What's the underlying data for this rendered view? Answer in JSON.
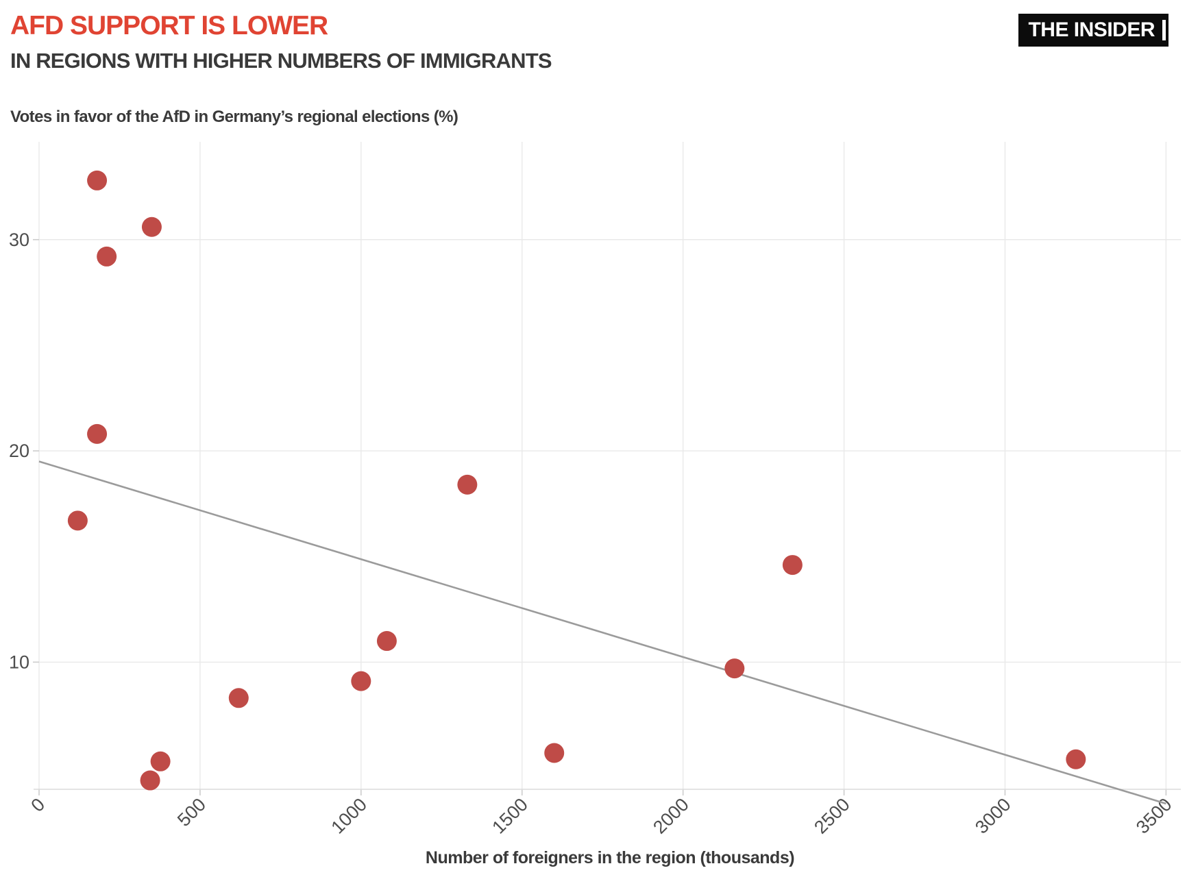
{
  "header": {
    "title_line1": "AFD SUPPORT IS LOWER",
    "title_line2": "IN REGIONS WITH HIGHER NUMBERS OF IMMIGRANTS",
    "logo_text": "THE INSIDER"
  },
  "chart_data": {
    "type": "scatter",
    "title": "Votes in favor of the AfD in Germany’s regional elections (%)",
    "xlabel": "Number of foreigners in the region (thousands)",
    "ylabel": "Votes in favor of the AfD in Germany’s regional elections (%)",
    "x_ticks": [
      0,
      500,
      1000,
      1500,
      2000,
      2500,
      3000,
      3500
    ],
    "y_ticks": [
      10,
      20,
      30
    ],
    "xlim": [
      0,
      3546
    ],
    "ylim": [
      3.98,
      34.63
    ],
    "grid": true,
    "legend": "none",
    "points": [
      {
        "x": 180,
        "y": 32.8
      },
      {
        "x": 350,
        "y": 30.6
      },
      {
        "x": 210,
        "y": 29.2
      },
      {
        "x": 180,
        "y": 20.8
      },
      {
        "x": 120,
        "y": 16.7
      },
      {
        "x": 1330,
        "y": 18.4
      },
      {
        "x": 2340,
        "y": 14.6
      },
      {
        "x": 1080,
        "y": 11.0
      },
      {
        "x": 1000,
        "y": 9.1
      },
      {
        "x": 2160,
        "y": 9.7
      },
      {
        "x": 620,
        "y": 8.3
      },
      {
        "x": 1600,
        "y": 5.7
      },
      {
        "x": 3220,
        "y": 5.4
      },
      {
        "x": 377,
        "y": 5.3
      },
      {
        "x": 345,
        "y": 4.4
      }
    ],
    "trend_line": {
      "x1": 0,
      "y1": 19.5,
      "x2": 3500,
      "y2": 3.3
    },
    "point_color": "#bf4b47",
    "trend_color": "#9b9b9b",
    "grid_color": "#e9e9e9",
    "axis_color": "#dcdcdc",
    "tick_color": "#cccccc",
    "tick_label_color": "#4d4d4d",
    "title_accent_color": "#e04433"
  }
}
